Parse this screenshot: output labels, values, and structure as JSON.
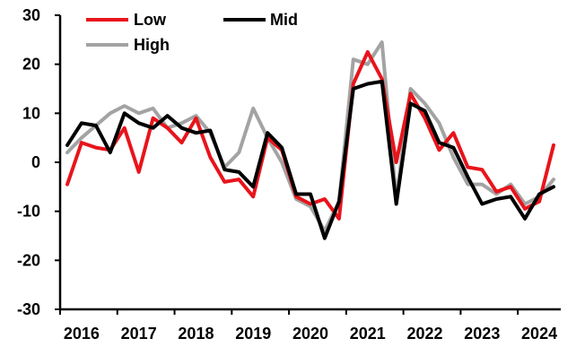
{
  "chart_data": {
    "type": "line",
    "title": "",
    "xlabel": "",
    "ylabel": "",
    "ylim": [
      -30,
      30
    ],
    "yticks": [
      -30,
      -20,
      -10,
      0,
      10,
      20,
      30
    ],
    "xticks": [
      "2016",
      "2017",
      "2018",
      "2019",
      "2020",
      "2021",
      "2022",
      "2023",
      "2024"
    ],
    "grid": false,
    "legend_position": "top-left",
    "x": [
      "2016 Q1",
      "2016 Q2",
      "2016 Q3",
      "2016 Q4",
      "2017 Q1",
      "2017 Q2",
      "2017 Q3",
      "2017 Q4",
      "2018 Q1",
      "2018 Q2",
      "2018 Q3",
      "2018 Q4",
      "2019 Q1",
      "2019 Q2",
      "2019 Q3",
      "2019 Q4",
      "2020 Q1",
      "2020 Q2",
      "2020 Q3",
      "2020 Q4",
      "2021 Q1",
      "2021 Q2",
      "2021 Q3",
      "2021 Q4",
      "2022 Q1",
      "2022 Q2",
      "2022 Q3",
      "2022 Q4",
      "2023 Q1",
      "2023 Q2",
      "2023 Q3",
      "2023 Q4",
      "2024 Q1",
      "2024 Q2",
      "2024 Q3"
    ],
    "series": [
      {
        "name": "Low",
        "color": "#e8141b",
        "values": [
          -4.5,
          4,
          3,
          2.5,
          7,
          -2,
          9,
          7,
          4,
          9,
          1,
          -4,
          -3.5,
          -7,
          5,
          2.5,
          -7,
          -8.5,
          -7.5,
          -11.5,
          16,
          22.5,
          17,
          0,
          14,
          9,
          2.5,
          6,
          -1,
          -1.5,
          -6,
          -5,
          -9.5,
          -8,
          3.5
        ]
      },
      {
        "name": "Mid",
        "color": "#000000",
        "values": [
          3.5,
          8,
          7.5,
          2,
          10,
          8,
          7,
          9.5,
          7,
          6,
          6.5,
          -1.5,
          -2,
          -5,
          6,
          3,
          -6.5,
          -6.5,
          -15.5,
          -8,
          15,
          16,
          16.5,
          -8.5,
          12,
          10.5,
          4,
          3,
          -3,
          -8.5,
          -7.5,
          -7,
          -11.5,
          -6.5,
          -5
        ]
      },
      {
        "name": "High",
        "color": "#a3a3a3",
        "values": [
          2,
          5,
          7.5,
          10,
          11.5,
          10,
          11,
          7,
          8,
          9.5,
          6,
          -1,
          2,
          11,
          5,
          0,
          -7.5,
          -9,
          -14,
          -8,
          21,
          20,
          24.5,
          -7.5,
          15,
          12,
          8,
          1,
          -4.5,
          -4.5,
          -6.5,
          -4.5,
          -8.5,
          -7,
          -3.5
        ]
      }
    ]
  }
}
